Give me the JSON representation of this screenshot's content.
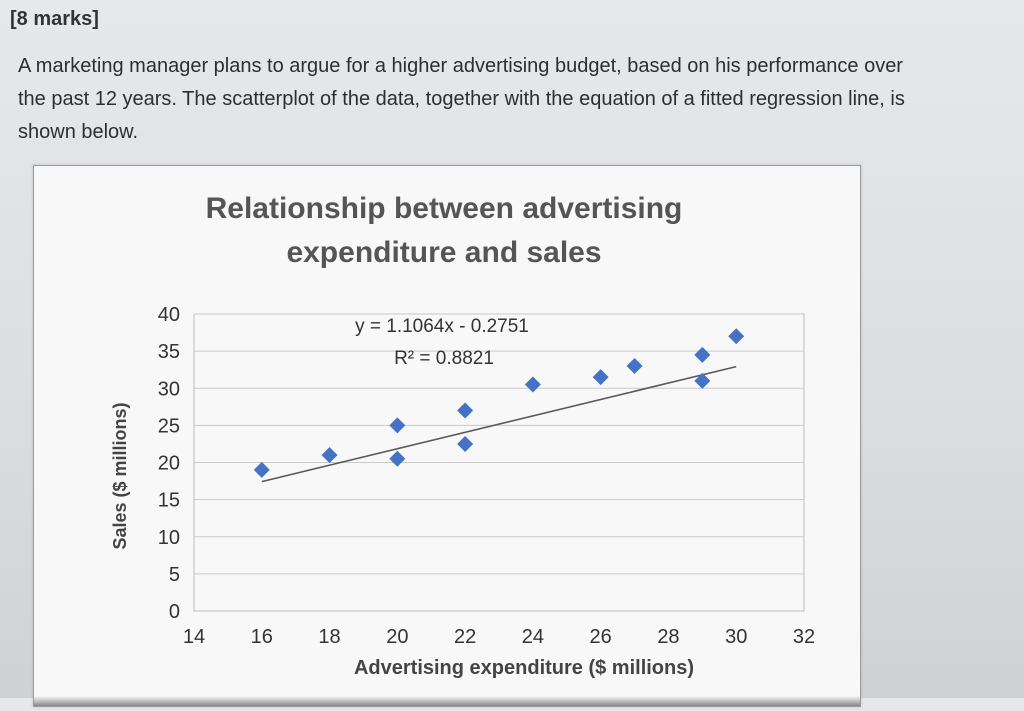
{
  "header": {
    "marks": "[8 marks]"
  },
  "question": {
    "line1": "A marketing manager plans to argue for a higher advertising budget, based on his performance over",
    "line2": "the past 12 years. The scatterplot of the data, together with the equation of a fitted regression line, is",
    "line3": "shown below."
  },
  "chart_data": {
    "type": "scatter",
    "title_line1": "Relationship between advertising",
    "title_line2": "expenditure and sales",
    "xlabel": "Advertising expenditure ($ millions)",
    "ylabel": "Sales ($ millions)",
    "xlim": [
      14,
      32
    ],
    "ylim": [
      0,
      40
    ],
    "xticks": [
      14,
      16,
      18,
      20,
      22,
      24,
      26,
      28,
      30,
      32
    ],
    "yticks": [
      0,
      5,
      10,
      15,
      20,
      25,
      30,
      35,
      40
    ],
    "grid": true,
    "points": [
      {
        "x": 16,
        "y": 19
      },
      {
        "x": 18,
        "y": 21
      },
      {
        "x": 20,
        "y": 25
      },
      {
        "x": 20,
        "y": 20.5
      },
      {
        "x": 22,
        "y": 27
      },
      {
        "x": 22,
        "y": 22.5
      },
      {
        "x": 24,
        "y": 30.5
      },
      {
        "x": 26,
        "y": 31.5
      },
      {
        "x": 27,
        "y": 33
      },
      {
        "x": 29,
        "y": 31
      },
      {
        "x": 29,
        "y": 34.5
      },
      {
        "x": 30,
        "y": 37
      }
    ],
    "trendline": {
      "slope": 1.1064,
      "intercept": -0.2751,
      "x_range": [
        16,
        30
      ]
    },
    "equation_text": "y = 1.1064x - 0.2751",
    "r2_text": "R² = 0.8821",
    "colors": {
      "marker": "#4472c4",
      "trendline": "#595959",
      "grid": "#c9c9c9"
    }
  }
}
